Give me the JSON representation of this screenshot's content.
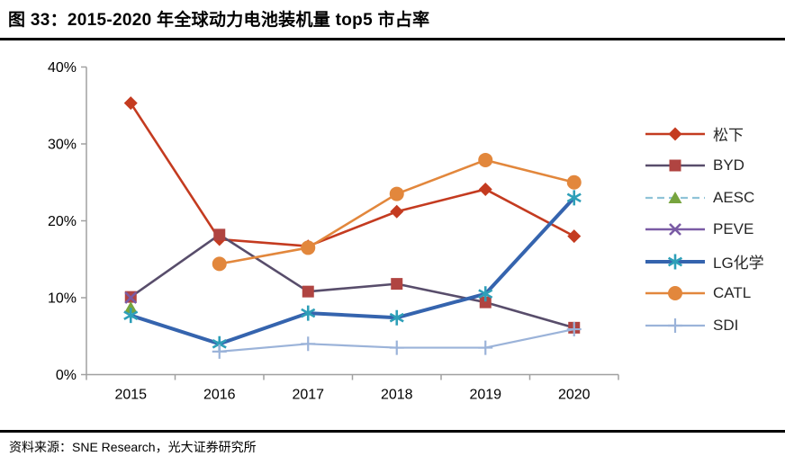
{
  "header": {
    "title": "图 33：2015-2020 年全球动力电池装机量 top5 市占率"
  },
  "footer": {
    "source": "资料来源：SNE Research，光大证券研究所"
  },
  "chart_data": {
    "type": "line",
    "title": "2015-2020 年全球动力电池装机量 top5 市占率",
    "xlabel": "",
    "ylabel": "",
    "categories": [
      "2015",
      "2016",
      "2017",
      "2018",
      "2019",
      "2020"
    ],
    "ylim": [
      0,
      40
    ],
    "y_ticks": [
      "0%",
      "10%",
      "20%",
      "30%",
      "40%"
    ],
    "grid": false,
    "legend_position": "right",
    "axis_color": "#a0a0a0",
    "series": [
      {
        "key": "panasonic",
        "name": "松下",
        "marker": "diamond",
        "line_color": "#c43b20",
        "marker_color": "#c43b20",
        "width": 2.6,
        "dash": false,
        "values": [
          35.3,
          17.6,
          16.7,
          21.2,
          24.1,
          18.0
        ]
      },
      {
        "key": "byd",
        "name": "BYD",
        "marker": "square",
        "line_color": "#584d6b",
        "marker_color": "#b04441",
        "width": 2.6,
        "dash": false,
        "values": [
          10.1,
          18.2,
          10.8,
          11.8,
          9.4,
          6.1
        ]
      },
      {
        "key": "aesc",
        "name": "AESC",
        "marker": "triangle",
        "line_color": "#8fc3d8",
        "marker_color": "#77a43e",
        "width": 2.2,
        "dash": true,
        "values": [
          8.7,
          null,
          null,
          null,
          null,
          null
        ]
      },
      {
        "key": "peve",
        "name": "PEVE",
        "marker": "x",
        "line_color": "#7a5ba5",
        "marker_color": "#7a5ba5",
        "width": 2.6,
        "dash": false,
        "values": [
          10.0,
          null,
          null,
          null,
          null,
          null
        ]
      },
      {
        "key": "lg-chem",
        "name": "LG化学",
        "marker": "asterisk",
        "line_color": "#3564ae",
        "marker_color": "#2e9fb8",
        "width": 4,
        "dash": false,
        "values": [
          7.7,
          4.0,
          8.0,
          7.4,
          10.5,
          23.0
        ]
      },
      {
        "key": "catl",
        "name": "CATL",
        "marker": "circle",
        "line_color": "#e2873c",
        "marker_color": "#e2873c",
        "width": 2.6,
        "dash": false,
        "values": [
          null,
          14.4,
          16.5,
          23.5,
          27.9,
          25.0
        ]
      },
      {
        "key": "sdi",
        "name": "SDI",
        "marker": "plus",
        "line_color": "#9bb3d9",
        "marker_color": "#9bb3d9",
        "width": 2.2,
        "dash": false,
        "values": [
          null,
          3.0,
          4.0,
          3.5,
          3.5,
          5.9
        ]
      }
    ]
  }
}
